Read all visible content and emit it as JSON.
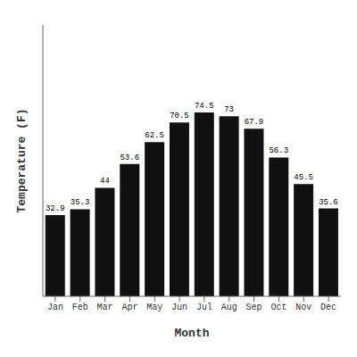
{
  "chart_data": {
    "type": "bar",
    "categories": [
      "Jan",
      "Feb",
      "Mar",
      "Apr",
      "May",
      "Jun",
      "Jul",
      "Aug",
      "Sep",
      "Oct",
      "Nov",
      "Dec"
    ],
    "values": [
      32.9,
      35.3,
      44.0,
      53.6,
      62.5,
      70.5,
      74.5,
      73.0,
      67.9,
      56.3,
      45.5,
      35.6
    ],
    "color": "#111111",
    "x_label": "Month",
    "y_label": "Temperature (F)",
    "ylim": [
      0,
      110
    ],
    "grid": false,
    "data_labels": true,
    "tick_labels": "x"
  }
}
